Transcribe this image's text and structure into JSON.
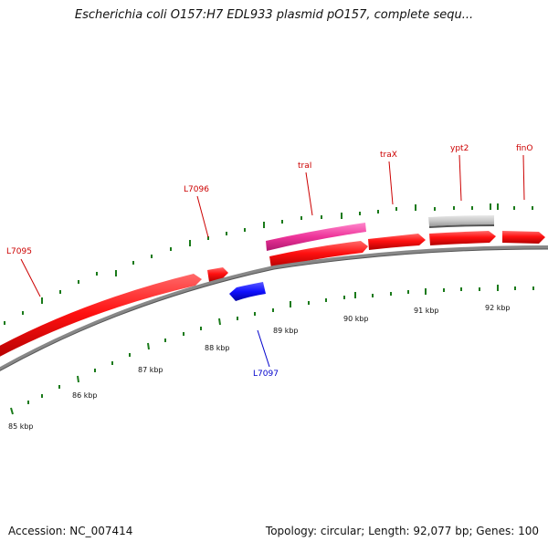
{
  "title": "Escherichia coli O157:H7 EDL933 plasmid pO157, complete sequ...",
  "accession_label": "Accession: NC_007414",
  "summary_label": "Topology: circular; Length: 92,077 bp; Genes: 100",
  "colors": {
    "forward_gene": "#ff0000",
    "reverse_gene": "#0000ee",
    "feature_pink": "#ee3399",
    "feature_gray": "#c0c0c0",
    "backbone": "#888888",
    "tick": "#1a7a1a",
    "label_red": "#cc0000",
    "label_blue": "#0000cc"
  },
  "ruler": {
    "labels": [
      "85 kbp",
      "86 kbp",
      "87 kbp",
      "88 kbp",
      "89 kbp",
      "90 kbp",
      "91 kbp",
      "92 kbp"
    ]
  },
  "genes": [
    {
      "name": "L7095",
      "strand": "forward",
      "color": "red"
    },
    {
      "name": "L7096",
      "strand": "forward",
      "color": "red"
    },
    {
      "name": "traI",
      "strand": "forward",
      "color": "red"
    },
    {
      "name": "traX",
      "strand": "forward",
      "color": "red"
    },
    {
      "name": "ypt2",
      "strand": "forward",
      "color": "red"
    },
    {
      "name": "finO",
      "strand": "forward",
      "color": "red"
    },
    {
      "name": "L7097",
      "strand": "reverse",
      "color": "blue"
    }
  ]
}
